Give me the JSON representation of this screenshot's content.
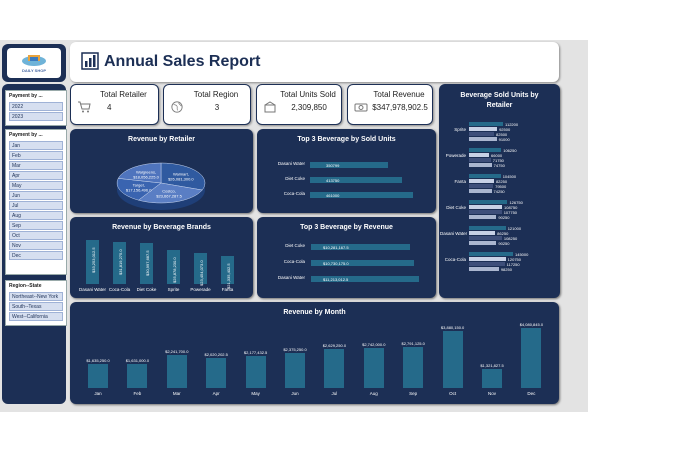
{
  "header": {
    "title": "Annual Sales Report"
  },
  "logo": {
    "text": "DAILY SHOP"
  },
  "slicers": {
    "year": {
      "title": "Payment by ...",
      "items": [
        "2022",
        "2023"
      ]
    },
    "month": {
      "title": "Payment by ...",
      "items": [
        "Jan",
        "Feb",
        "Mar",
        "Apr",
        "May",
        "Jun",
        "Jul",
        "Aug",
        "Sep",
        "Oct",
        "Nov",
        "Dec"
      ]
    },
    "region": {
      "title": "Region--State",
      "items": [
        "Northeast--New York",
        "South--Texas",
        "West--California"
      ]
    }
  },
  "kpis": [
    {
      "label": "Total Retailer",
      "value": "4",
      "icon": "cart-icon"
    },
    {
      "label": "Total Region",
      "value": "3",
      "icon": "globe-icon"
    },
    {
      "label": "Total Units Sold",
      "value": "2,309,850",
      "icon": "box-icon"
    },
    {
      "label": "Total Revenue",
      "value": "$347,978,902.5",
      "icon": "money-icon"
    }
  ],
  "colors": {
    "panel": "#1c2f55",
    "bar": "#256a8a",
    "accent": "#4a6aa5"
  },
  "chart_data": [
    {
      "type": "pie",
      "title": "Revenue by Retailer",
      "slices": [
        {
          "name": "Walmart",
          "value": 26081300.0,
          "label": "Walmart, $26,081,300.0"
        },
        {
          "name": "Costco",
          "value": 23667287.5,
          "label": "Costco, $23,667,287.5"
        },
        {
          "name": "Target",
          "value": 17156496.0,
          "label": "Target, $17,156,496.0"
        },
        {
          "name": "Walgreens",
          "value": 18056225.0,
          "label": "Walgreens, $18,056,225.0"
        }
      ]
    },
    {
      "type": "bar",
      "title": "Revenue by Beverage Brands",
      "categories": [
        "Dasani Water",
        "Coca-Cola",
        "Diet Coke",
        "Sprite",
        "Powerade",
        "Fanta"
      ],
      "values": [
        33253012.5,
        31819275.0,
        30997687.5,
        25878230.0,
        23454073.0,
        21335402.5
      ],
      "labels": [
        "$33,253,012.5",
        "$31,819,275.0",
        "$30,997,687.5",
        "$25,878,230.0",
        "$23,454,073.0",
        "$21,335,402.5"
      ]
    },
    {
      "type": "bar",
      "title": "Top 3 Beverage by Sold Units",
      "orientation": "horizontal",
      "categories": [
        "Dasani Water",
        "Diet Coke",
        "Coca-Cola"
      ],
      "values": [
        350799,
        413750,
        461000
      ],
      "labels": [
        "350799",
        "413750",
        "461000"
      ]
    },
    {
      "type": "bar",
      "title": "Top 3 Beverage by Revenue",
      "orientation": "horizontal",
      "categories": [
        "Diet Coke",
        "Coca-Cola",
        "Dasani Water"
      ],
      "values": [
        10281167.5,
        10730175.0,
        11213012.5
      ],
      "labels": [
        "$10,281,167.5",
        "$10,730,175.0",
        "$11,213,012.5"
      ]
    },
    {
      "type": "bar",
      "title": "Beverage Sold Units by Retailer",
      "orientation": "horizontal",
      "categories": [
        "Sprite",
        "Powerade",
        "Fanta",
        "Diet Coke",
        "Dasani Water",
        "Coca-Cola"
      ],
      "series": [
        {
          "values": [
            112200,
            106250,
            104500,
            126750,
            121000,
            145000
          ]
        },
        {
          "values": [
            92500,
            66000,
            82250,
            108750,
            86250,
            120750
          ]
        },
        {
          "values": [
            82500,
            71750,
            79500,
            107750,
            108250,
            117250
          ]
        },
        {
          "values": [
            91000,
            74750,
            74250,
            90250,
            90250,
            98250
          ]
        }
      ]
    },
    {
      "type": "bar",
      "title": "Revenue by Month",
      "categories": [
        "Jan",
        "Feb",
        "Mar",
        "Apr",
        "May",
        "Jun",
        "Jul",
        "Aug",
        "Sep",
        "Oct",
        "Nov",
        "Dec"
      ],
      "values": [
        1635250.0,
        1631000.0,
        2241700.0,
        2020202.5,
        2177432.5,
        2375250.0,
        2629250.0,
        2742000.0,
        2791125.0,
        3880150.0,
        1321827.5,
        4080845.0
      ],
      "labels": [
        "$1,635,250.0",
        "$1,631,000.0",
        "$2,241,700.0",
        "$2,020,202.5",
        "$2,177,432.5",
        "$2,375,250.0",
        "$2,629,250.0",
        "$2,742,000.0",
        "$2,791,125.0",
        "$3,880,150.0",
        "$1,321,827.5",
        "$4,080,845.0"
      ]
    }
  ]
}
